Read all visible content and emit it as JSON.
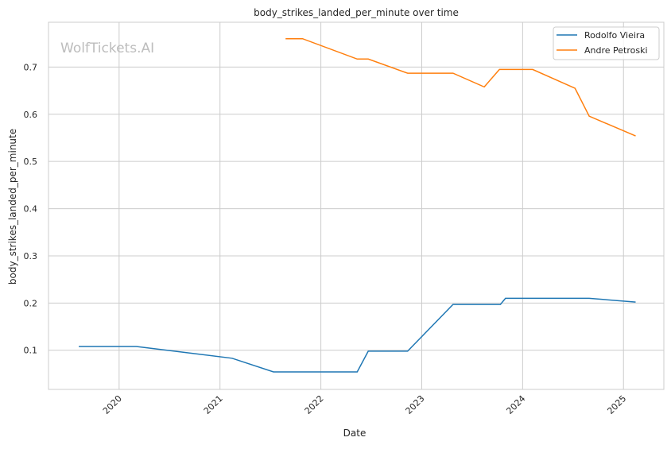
{
  "chart_data": {
    "type": "line",
    "title": "body_strikes_landed_per_minute over time",
    "xlabel": "Date",
    "ylabel": "body_strikes_landed_per_minute",
    "watermark": "WolfTickets.AI",
    "xlim": [
      2019.3,
      2025.4
    ],
    "ylim": [
      0.017,
      0.795
    ],
    "x_ticks": [
      2020,
      2021,
      2022,
      2023,
      2024,
      2025
    ],
    "y_ticks": [
      0.1,
      0.2,
      0.3,
      0.4,
      0.5,
      0.6,
      0.7
    ],
    "grid": true,
    "legend_position": "top-right",
    "series": [
      {
        "name": "Rodolfo Vieira",
        "color": "#1f77b4",
        "x": [
          2019.6,
          2020.17,
          2021.12,
          2021.53,
          2022.36,
          2022.47,
          2022.86,
          2023.31,
          2023.78,
          2023.83,
          2024.66,
          2025.12
        ],
        "y": [
          0.108,
          0.108,
          0.083,
          0.054,
          0.054,
          0.098,
          0.098,
          0.197,
          0.197,
          0.21,
          0.21,
          0.202
        ]
      },
      {
        "name": "Andre Petroski",
        "color": "#ff7f0e",
        "x": [
          2021.65,
          2021.82,
          2022.36,
          2022.47,
          2022.86,
          2023.31,
          2023.62,
          2023.77,
          2024.1,
          2024.52,
          2024.66,
          2025.12
        ],
        "y": [
          0.76,
          0.76,
          0.717,
          0.717,
          0.687,
          0.687,
          0.658,
          0.695,
          0.695,
          0.655,
          0.596,
          0.554
        ]
      }
    ]
  }
}
